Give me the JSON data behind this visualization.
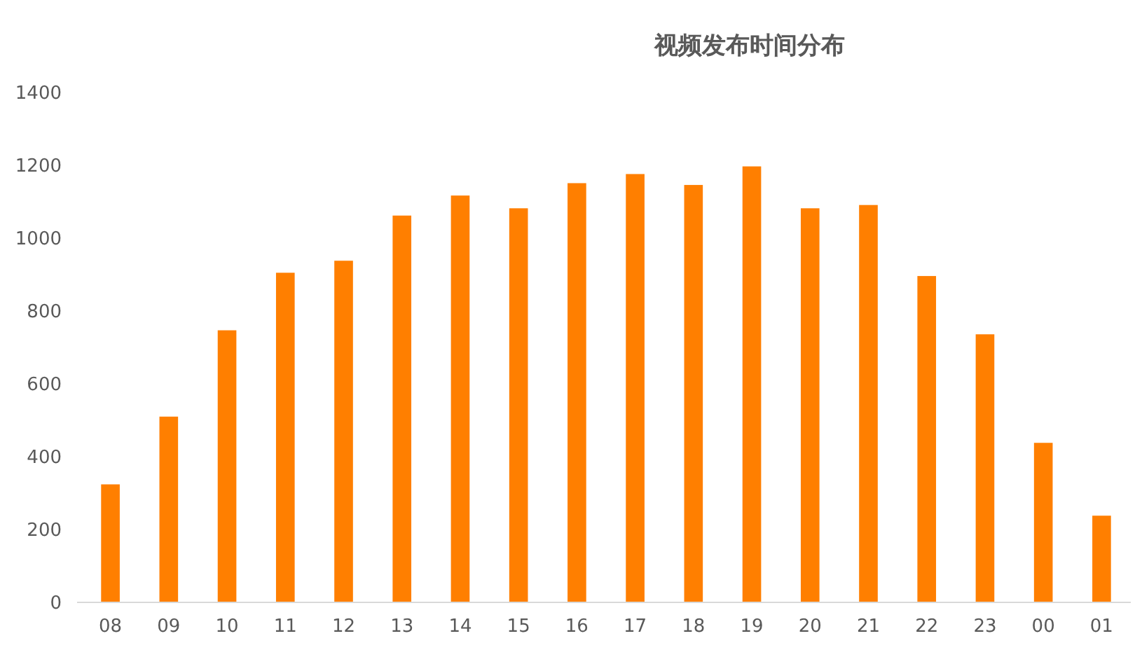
{
  "chart_data": {
    "type": "bar",
    "title": "视频发布时间分布",
    "categories": [
      "08",
      "09",
      "10",
      "11",
      "12",
      "13",
      "14",
      "15",
      "16",
      "17",
      "18",
      "19",
      "20",
      "21",
      "22",
      "23",
      "00",
      "01"
    ],
    "values": [
      324,
      510,
      747,
      905,
      938,
      1062,
      1117,
      1082,
      1151,
      1176,
      1146,
      1197,
      1082,
      1091,
      896,
      736,
      438,
      238
    ],
    "color": "#ff7f00",
    "ylim": [
      0,
      1400
    ],
    "yticks": [
      0,
      200,
      400,
      600,
      800,
      1000,
      1200,
      1400
    ],
    "grid": false
  }
}
